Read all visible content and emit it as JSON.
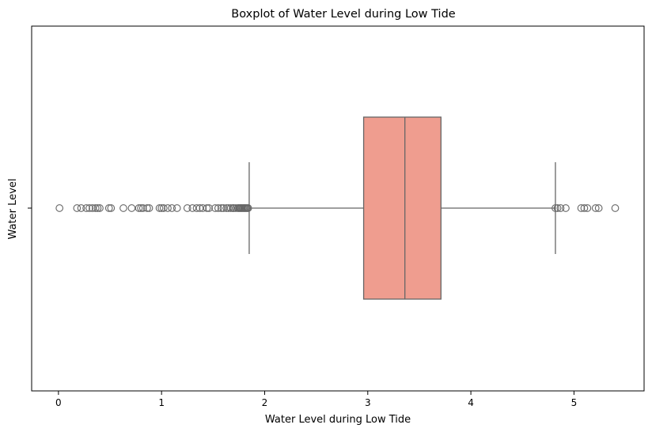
{
  "chart_data": {
    "type": "boxplot",
    "title": "Boxplot of Water Level during Low Tide",
    "xlabel": "Water Level during Low Tide",
    "ylabel": "Water Level",
    "xlim": [
      -0.26,
      5.68
    ],
    "x_ticks": [
      0,
      1,
      2,
      3,
      4,
      5
    ],
    "x_tick_labels": [
      "0",
      "1",
      "2",
      "3",
      "4",
      "5"
    ],
    "y_tick_labels": [
      ""
    ],
    "grid": false,
    "orientation": "horizontal",
    "box": {
      "whisker_low": 1.85,
      "q1": 2.96,
      "median": 3.36,
      "q3": 3.71,
      "whisker_high": 4.82
    },
    "outliers": [
      0.01,
      0.18,
      0.22,
      0.27,
      0.3,
      0.33,
      0.36,
      0.38,
      0.4,
      0.49,
      0.51,
      0.63,
      0.71,
      0.78,
      0.8,
      0.82,
      0.86,
      0.88,
      0.98,
      1.0,
      1.02,
      1.06,
      1.1,
      1.15,
      1.25,
      1.3,
      1.34,
      1.37,
      1.4,
      1.44,
      1.46,
      1.52,
      1.55,
      1.58,
      1.6,
      1.63,
      1.65,
      1.67,
      1.69,
      1.7,
      1.72,
      1.74,
      1.75,
      1.76,
      1.77,
      1.78,
      1.79,
      1.8,
      1.81,
      1.82,
      1.83,
      1.84,
      4.82,
      4.84,
      4.87,
      4.92,
      5.07,
      5.1,
      5.13,
      5.21,
      5.24,
      5.4
    ],
    "colors": {
      "box_fill": "#ef9d8f",
      "line": "#666666",
      "axis": "#000000"
    }
  }
}
